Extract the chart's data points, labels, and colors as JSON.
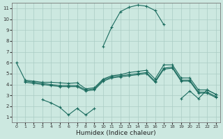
{
  "xlabel": "Humidex (Indice chaleur)",
  "bg_color": "#cce8e0",
  "grid_color": "#aaccc4",
  "line_color": "#1a6b5e",
  "xlim": [
    -0.5,
    23.5
  ],
  "ylim": [
    0.5,
    11.5
  ],
  "xticks": [
    0,
    1,
    2,
    3,
    4,
    5,
    6,
    7,
    8,
    9,
    10,
    11,
    12,
    13,
    14,
    15,
    16,
    17,
    18,
    19,
    20,
    21,
    22,
    23
  ],
  "yticks": [
    1,
    2,
    3,
    4,
    5,
    6,
    7,
    8,
    9,
    10,
    11
  ],
  "series": [
    {
      "x": [
        10,
        11,
        12,
        13,
        14,
        15,
        16,
        17
      ],
      "y": [
        7.5,
        9.3,
        10.7,
        11.1,
        11.3,
        11.2,
        10.8,
        9.5
      ]
    },
    {
      "x": [
        0,
        1,
        2,
        3,
        4,
        5,
        6,
        7,
        8,
        9,
        10,
        11,
        12,
        13,
        14,
        15,
        16,
        17,
        18,
        19,
        20,
        21,
        22,
        23
      ],
      "y": [
        6.0,
        4.4,
        4.3,
        4.2,
        4.2,
        4.15,
        4.1,
        4.15,
        3.6,
        3.7,
        4.5,
        4.8,
        4.9,
        5.1,
        5.2,
        5.3,
        4.5,
        5.8,
        5.8,
        4.6,
        4.6,
        3.5,
        3.5,
        3.1
      ]
    },
    {
      "x": [
        1,
        2,
        3,
        4,
        5,
        6,
        7,
        8,
        9,
        10,
        11,
        12,
        13,
        14,
        15,
        16,
        17,
        18,
        19,
        20,
        21,
        22,
        23
      ],
      "y": [
        4.3,
        4.2,
        4.1,
        4.0,
        3.9,
        3.9,
        3.9,
        3.5,
        3.6,
        4.4,
        4.7,
        4.8,
        4.9,
        5.0,
        5.1,
        4.3,
        5.5,
        5.6,
        4.4,
        4.4,
        3.3,
        3.3,
        2.9
      ]
    },
    {
      "x": [
        1,
        2,
        3,
        4,
        5,
        6,
        7,
        8,
        9,
        10,
        11,
        12,
        13,
        14,
        15,
        16,
        17,
        18,
        19,
        20,
        21,
        22,
        23
      ],
      "y": [
        4.2,
        4.1,
        4.0,
        3.9,
        3.8,
        3.8,
        3.8,
        3.4,
        3.5,
        4.3,
        4.6,
        4.7,
        4.8,
        4.9,
        5.0,
        4.2,
        5.4,
        5.5,
        4.3,
        4.3,
        3.2,
        3.2,
        2.8
      ]
    },
    {
      "x": [
        3,
        4,
        5,
        6,
        7,
        8,
        9
      ],
      "y": [
        2.6,
        2.3,
        1.9,
        1.2,
        1.8,
        1.2,
        1.8
      ]
    },
    {
      "x": [
        19,
        20,
        21,
        22,
        23
      ],
      "y": [
        2.7,
        3.4,
        2.7,
        3.5,
        3.1
      ]
    }
  ]
}
